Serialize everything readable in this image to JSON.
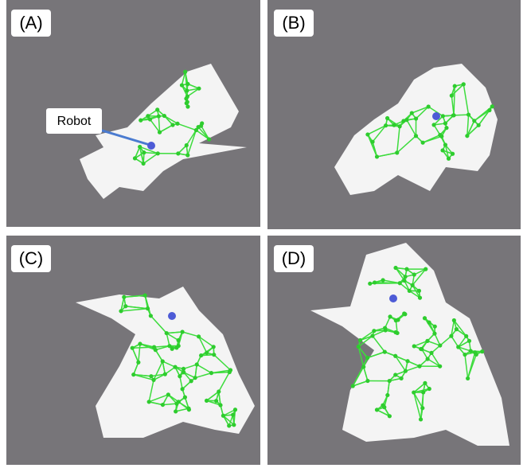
{
  "panels": [
    {
      "label": "(A)",
      "annotation": "Robot"
    },
    {
      "label": "(B)"
    },
    {
      "label": "(C)"
    },
    {
      "label": "(D)"
    }
  ]
}
